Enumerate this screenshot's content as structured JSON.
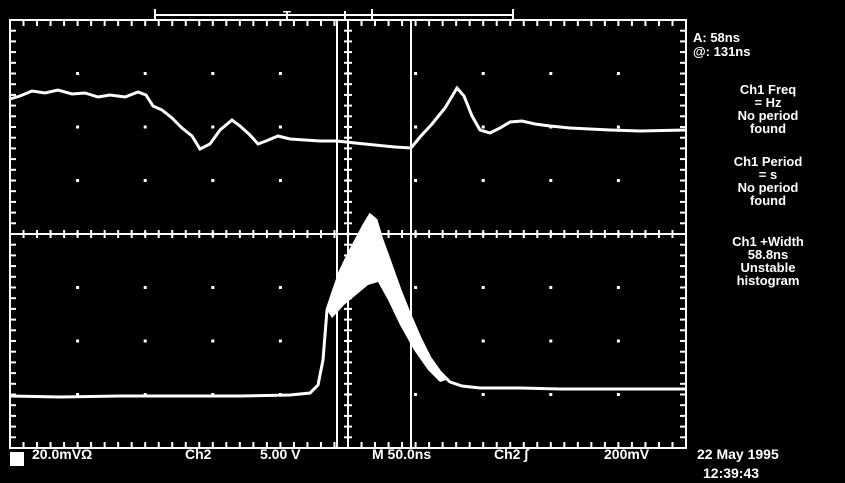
{
  "trigger_marker": "T",
  "cursor_readout": {
    "delta": "A: 58ns",
    "absolute": "@: 131ns"
  },
  "measurements": [
    {
      "line1": "Ch1 Freq",
      "line2": "= Hz",
      "line3": "No period",
      "line4": "found"
    },
    {
      "line1": "Ch1 Period",
      "line2": "= s",
      "line3": "No period",
      "line4": "found"
    },
    {
      "line1": "Ch1 +Width",
      "line2": "58.8ns",
      "line3": "Unstable",
      "line4": "histogram"
    }
  ],
  "status_bar": {
    "ch1_scale": "20.0mVΩ",
    "ch2_label": "Ch2",
    "ch2_scale": "5.00 V",
    "timebase": "M 50.0ns",
    "trigger_source": "Ch2 ∫",
    "trigger_level": "200mV"
  },
  "date": "22 May 1995",
  "time": "12:39:43",
  "colors": {
    "background": "#000000",
    "trace": "#ffffff",
    "grid": "#ffffff"
  }
}
